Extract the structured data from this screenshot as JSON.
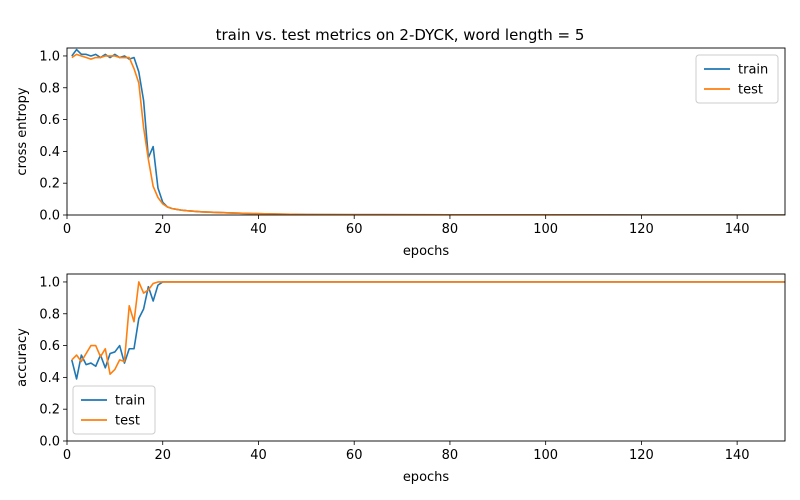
{
  "title": "train vs. test metrics on 2-DYCK, word length = 5",
  "colors": {
    "train": "#1f77b4",
    "test": "#ff7f0e"
  },
  "chart_data": [
    {
      "type": "line",
      "xlabel": "epochs",
      "ylabel": "cross entropy",
      "xlim": [
        0,
        150
      ],
      "ylim": [
        0,
        1.05
      ],
      "xticks": [
        0,
        20,
        40,
        60,
        80,
        100,
        120,
        140
      ],
      "yticks": [
        0.0,
        0.2,
        0.4,
        0.6,
        0.8,
        1.0
      ],
      "xtick_labels": [
        "0",
        "20",
        "40",
        "60",
        "80",
        "100",
        "120",
        "140"
      ],
      "ytick_labels": [
        "0.0",
        "0.2",
        "0.4",
        "0.6",
        "0.8",
        "1.0"
      ],
      "legend": "top-right",
      "grid": false,
      "series": [
        {
          "name": "train",
          "color": "#1f77b4",
          "x": [
            1,
            2,
            3,
            4,
            5,
            6,
            7,
            8,
            9,
            10,
            11,
            12,
            13,
            14,
            15,
            16,
            17,
            18,
            19,
            20,
            21,
            22,
            23,
            24,
            25,
            26,
            28,
            30,
            32,
            35,
            40,
            45,
            50,
            60,
            80,
            100,
            120,
            150
          ],
          "y": [
            1.0,
            1.04,
            1.01,
            1.01,
            1.0,
            1.01,
            0.99,
            1.01,
            0.99,
            1.01,
            0.99,
            1.0,
            0.98,
            0.99,
            0.9,
            0.72,
            0.36,
            0.43,
            0.17,
            0.08,
            0.05,
            0.04,
            0.035,
            0.03,
            0.027,
            0.025,
            0.02,
            0.018,
            0.015,
            0.012,
            0.008,
            0.005,
            0.003,
            0.002,
            0.001,
            0.001,
            0.0,
            0.0
          ]
        },
        {
          "name": "test",
          "color": "#ff7f0e",
          "x": [
            1,
            2,
            3,
            4,
            5,
            6,
            7,
            8,
            9,
            10,
            11,
            12,
            13,
            14,
            15,
            16,
            17,
            18,
            19,
            20,
            21,
            22,
            23,
            24,
            25,
            26,
            28,
            30,
            32,
            35,
            40,
            45,
            50,
            60,
            80,
            100,
            120,
            150
          ],
          "y": [
            0.99,
            1.01,
            1.0,
            0.99,
            0.98,
            0.99,
            0.99,
            1.0,
            1.0,
            1.0,
            0.99,
            0.99,
            0.99,
            0.92,
            0.83,
            0.55,
            0.35,
            0.18,
            0.11,
            0.07,
            0.05,
            0.04,
            0.035,
            0.03,
            0.027,
            0.025,
            0.02,
            0.018,
            0.015,
            0.012,
            0.008,
            0.005,
            0.003,
            0.002,
            0.001,
            0.001,
            0.0,
            0.0
          ]
        }
      ]
    },
    {
      "type": "line",
      "xlabel": "epochs",
      "ylabel": "accuracy",
      "xlim": [
        0,
        150
      ],
      "ylim": [
        0,
        1.05
      ],
      "xticks": [
        0,
        20,
        40,
        60,
        80,
        100,
        120,
        140
      ],
      "yticks": [
        0.0,
        0.2,
        0.4,
        0.6,
        0.8,
        1.0
      ],
      "xtick_labels": [
        "0",
        "20",
        "40",
        "60",
        "80",
        "100",
        "120",
        "140"
      ],
      "ytick_labels": [
        "0.0",
        "0.2",
        "0.4",
        "0.6",
        "0.8",
        "1.0"
      ],
      "legend": "bottom-left",
      "grid": false,
      "series": [
        {
          "name": "train",
          "color": "#1f77b4",
          "x": [
            1,
            2,
            3,
            4,
            5,
            6,
            7,
            8,
            9,
            10,
            11,
            12,
            13,
            14,
            15,
            16,
            17,
            18,
            19,
            20,
            21,
            25,
            30,
            40,
            60,
            80,
            100,
            120,
            150
          ],
          "y": [
            0.51,
            0.39,
            0.54,
            0.48,
            0.49,
            0.47,
            0.54,
            0.46,
            0.55,
            0.56,
            0.6,
            0.49,
            0.58,
            0.58,
            0.77,
            0.83,
            0.97,
            0.88,
            0.98,
            1.0,
            1.0,
            1.0,
            1.0,
            1.0,
            1.0,
            1.0,
            1.0,
            1.0,
            1.0
          ]
        },
        {
          "name": "test",
          "color": "#ff7f0e",
          "x": [
            1,
            2,
            3,
            4,
            5,
            6,
            7,
            8,
            9,
            10,
            11,
            12,
            13,
            14,
            15,
            16,
            17,
            18,
            19,
            20,
            21,
            25,
            30,
            40,
            60,
            80,
            100,
            120,
            150
          ],
          "y": [
            0.51,
            0.54,
            0.5,
            0.55,
            0.6,
            0.6,
            0.53,
            0.58,
            0.42,
            0.45,
            0.51,
            0.5,
            0.85,
            0.75,
            1.0,
            0.93,
            0.95,
            0.99,
            1.0,
            1.0,
            1.0,
            1.0,
            1.0,
            1.0,
            1.0,
            1.0,
            1.0,
            1.0,
            1.0
          ]
        }
      ]
    }
  ]
}
